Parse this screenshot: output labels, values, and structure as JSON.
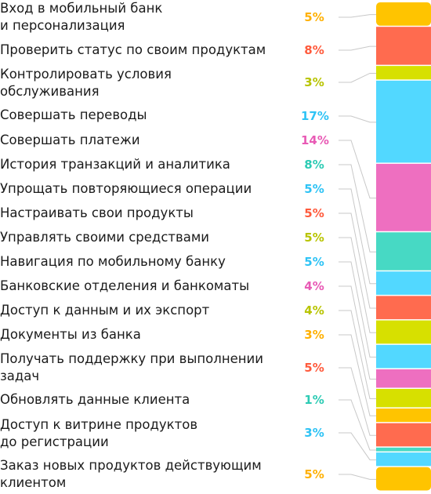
{
  "chart_data": {
    "type": "bar",
    "stacked": true,
    "categories": [
      "Вход в мобильный банк\nи персонализация",
      "Проверить статус по своим продуктам",
      "Контролировать условия\nобслуживания",
      "Совершать переводы",
      "Совершать платежи",
      "История транзакций и аналитика",
      "Упрощать повторяющиеся операции",
      "Настраивать свои продукты",
      "Управлять своими средствами",
      "Навигация по мобильному банку",
      "Банковские отделения и банкоматы",
      "Доступ к данным и их экспорт",
      "Документы из банка",
      "Получать поддержку при выполнении\nзадач",
      "Обновлять данные клиента",
      "Доступ к витрине продуктов\nдо регистрации",
      "Заказ новых продуктов действующим\nклиентом"
    ],
    "value_labels": [
      "5%",
      "8%",
      "3%",
      "17%",
      "14%",
      "8%",
      "5%",
      "5%",
      "5%",
      "5%",
      "4%",
      "4%",
      "3%",
      "5%",
      "1%",
      "3%",
      "5%"
    ],
    "values": [
      5,
      8,
      3,
      17,
      14,
      8,
      5,
      5,
      5,
      5,
      4,
      4,
      3,
      5,
      1,
      3,
      5
    ],
    "colors": [
      "#FFC400",
      "#FF6B4F",
      "#D7E000",
      "#52D8FF",
      "#EE6FC0",
      "#47D9C4",
      "#52D8FF",
      "#FF6B4F",
      "#D7E000",
      "#52D8FF",
      "#EE6FC0",
      "#D7E000",
      "#FFC400",
      "#FF6B4F",
      "#47D9C4",
      "#52D8FF",
      "#FFC400"
    ],
    "legend": "none",
    "grid": false
  }
}
